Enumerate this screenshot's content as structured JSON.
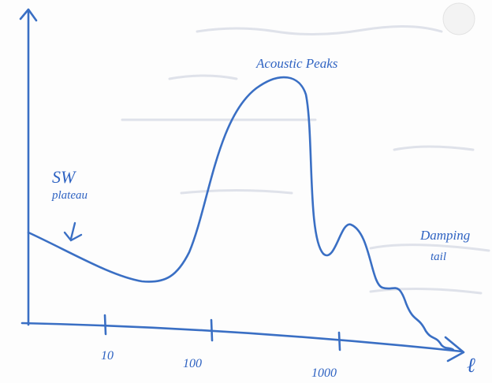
{
  "axis": {
    "ticks": [
      10,
      100,
      1000
    ],
    "label": "ℓ"
  },
  "annotations": [
    {
      "lines": [
        "SW",
        "plateau"
      ]
    },
    {
      "lines": [
        "Acoustic Peaks"
      ]
    },
    {
      "lines": [
        "Damping",
        "tail"
      ]
    }
  ]
}
